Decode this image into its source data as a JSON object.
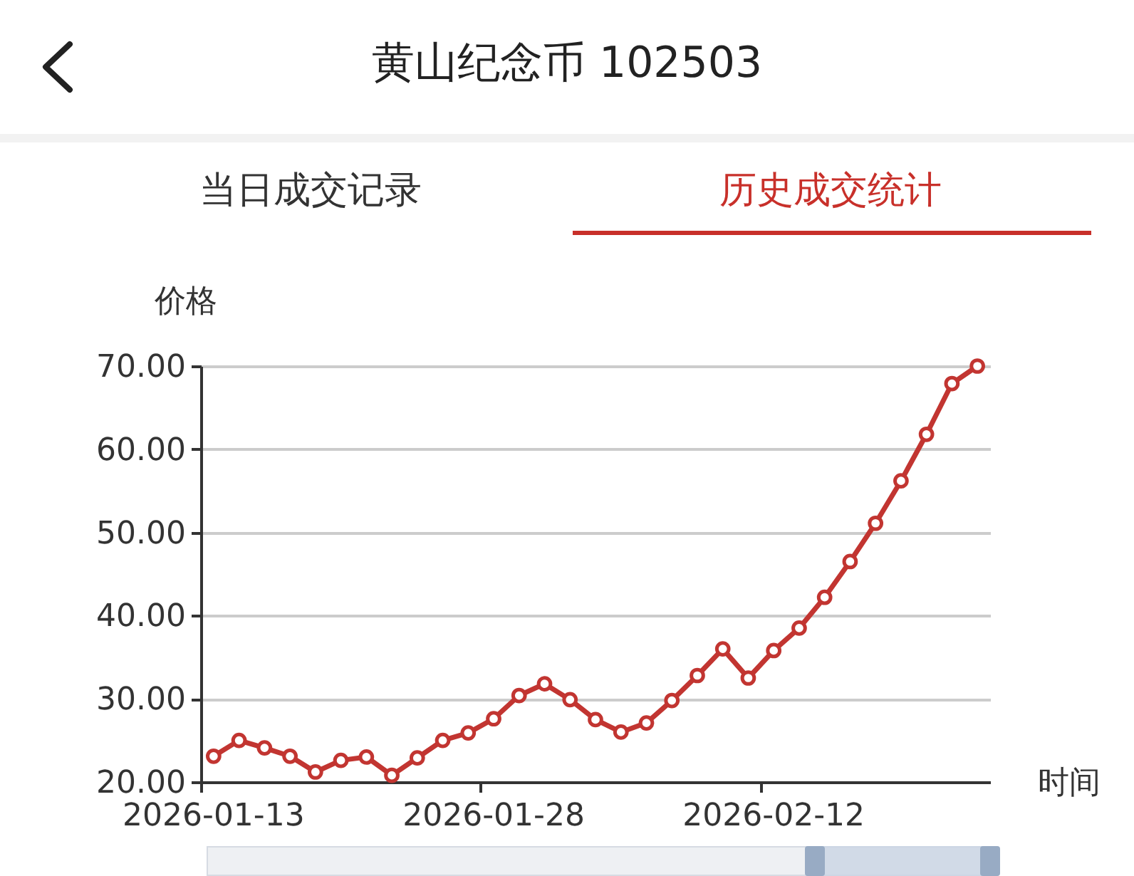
{
  "chart_data": {
    "type": "line",
    "title": "黄山纪念币 102503",
    "annotations": [
      "当日成交记录",
      "历史成交统计"
    ],
    "ylabel": "价格",
    "xlabel": "时间",
    "categories": [
      "2026-01-13",
      null,
      null,
      null,
      null,
      null,
      null,
      null,
      null,
      null,
      null,
      "2026-01-28",
      null,
      null,
      null,
      null,
      null,
      null,
      null,
      null,
      null,
      null,
      "2026-02-12",
      null,
      null,
      null,
      null,
      null,
      null,
      null,
      null
    ],
    "series": [
      {
        "color": "#c23531",
        "values": [
          23.1,
          25.0,
          24.1,
          23.1,
          21.2,
          22.6,
          23.0,
          20.8,
          22.9,
          25.0,
          25.9,
          27.6,
          30.4,
          31.8,
          29.9,
          27.5,
          26.0,
          27.1,
          29.8,
          32.8,
          36.0,
          32.5,
          35.8,
          38.5,
          42.2,
          46.5,
          51.1,
          56.2,
          61.8,
          67.9,
          70.0
        ]
      }
    ],
    "ylim": [
      20,
      70
    ],
    "yticks": [
      {
        "value": 20,
        "label": "20.00"
      },
      {
        "value": 30,
        "label": "30.00"
      },
      {
        "value": 40,
        "label": "40.00"
      },
      {
        "value": 50,
        "label": "50.00"
      },
      {
        "value": 60,
        "label": "60.00"
      },
      {
        "value": 70,
        "label": "70.00"
      }
    ],
    "grid": "y",
    "marker": "circle",
    "line_style": "solid"
  }
}
